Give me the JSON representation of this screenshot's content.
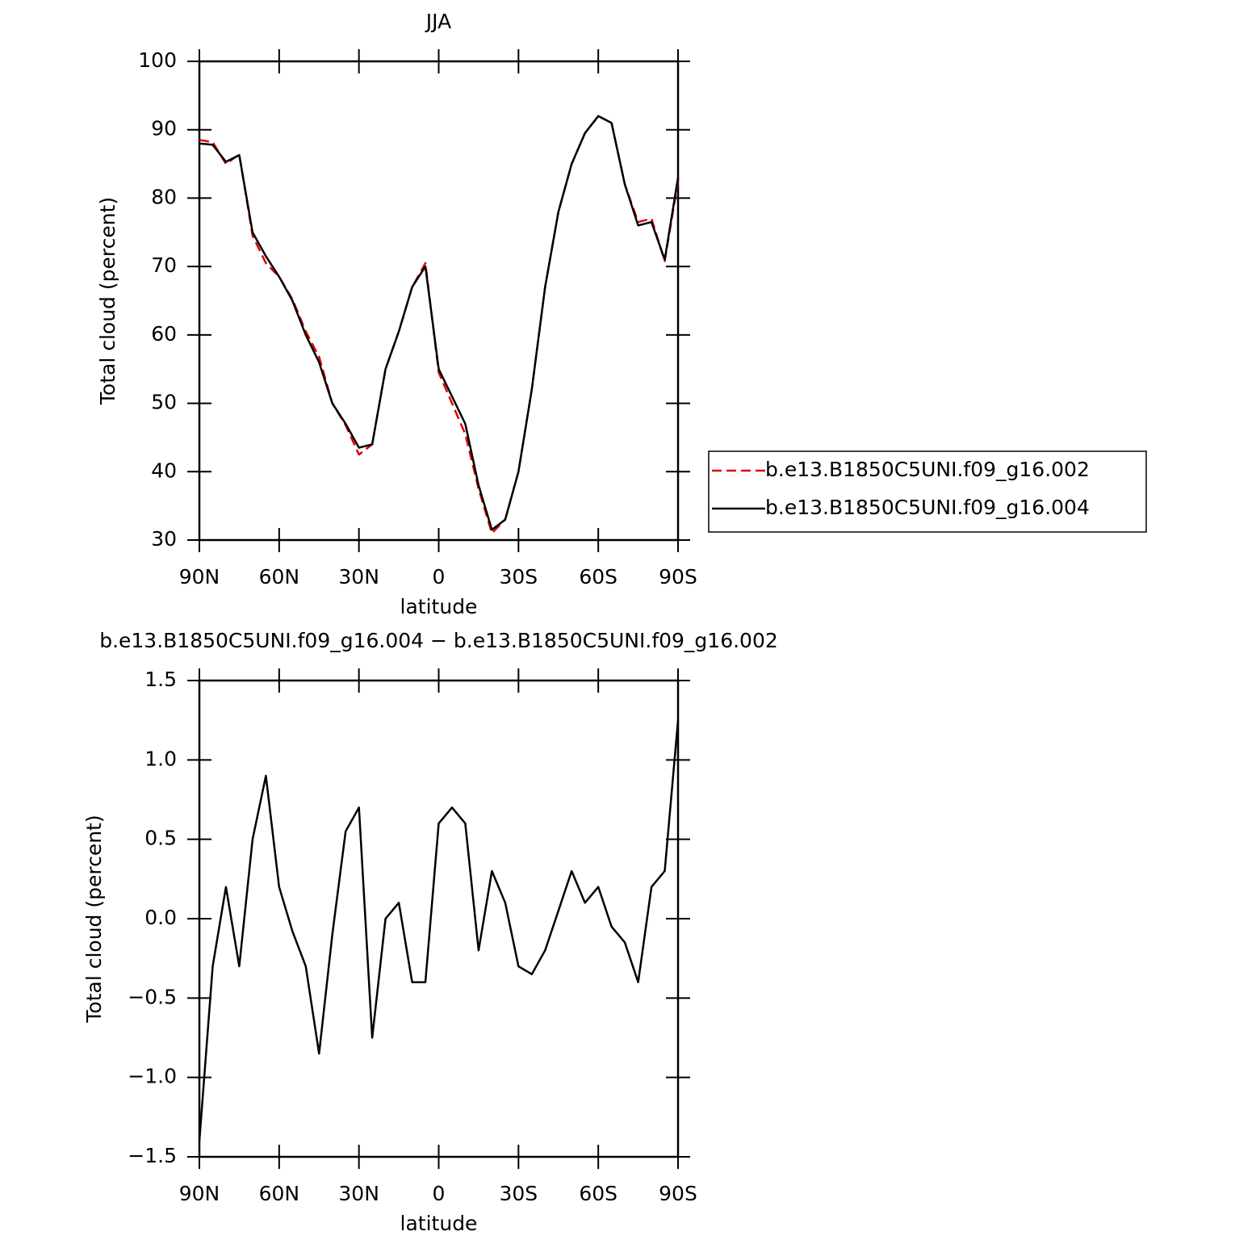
{
  "chart_data": [
    {
      "type": "line",
      "title": "JJA",
      "xlabel": "latitude",
      "ylabel": "Total cloud (percent)",
      "x": [
        90,
        85,
        80,
        75,
        70,
        65,
        60,
        55,
        50,
        45,
        40,
        35,
        30,
        25,
        20,
        15,
        10,
        5,
        0,
        -5,
        -10,
        -15,
        -20,
        -25,
        -30,
        -35,
        -40,
        -45,
        -50,
        -55,
        -60,
        -65,
        -70,
        -75,
        -80,
        -85,
        -90
      ],
      "series": [
        {
          "name": "b.e13.B1850C5UNI.f09_g16.002",
          "color": "#e00000",
          "dash": true,
          "values": [
            88.5,
            88.2,
            85.0,
            86.4,
            74.5,
            70.5,
            68.5,
            65.2,
            60.5,
            56.8,
            50.0,
            46.8,
            42.5,
            44.0,
            55.0,
            60.5,
            67.0,
            70.5,
            54.5,
            50.0,
            45.5,
            37.5,
            31.0,
            33.0,
            40.0,
            52.0,
            67.0,
            78.0,
            85.0,
            89.5,
            92.0,
            91.0,
            82.0,
            76.5,
            77.0,
            70.8,
            82.5
          ]
        },
        {
          "name": "b.e13.B1850C5UNI.f09_g16.004",
          "color": "#000000",
          "dash": false,
          "values": [
            88.0,
            87.8,
            85.3,
            86.3,
            75.0,
            71.5,
            68.5,
            65.0,
            60.0,
            56.0,
            50.0,
            47.0,
            43.5,
            44.0,
            55.0,
            60.5,
            67.0,
            70.0,
            55.0,
            51.0,
            47.0,
            38.0,
            31.5,
            33.0,
            40.0,
            52.0,
            67.0,
            78.0,
            85.0,
            89.5,
            92.0,
            91.0,
            82.0,
            76.0,
            76.5,
            71.0,
            83.0
          ]
        }
      ],
      "xlim": [
        90,
        -90
      ],
      "xticks": [
        {
          "value": 90,
          "label": "90N"
        },
        {
          "value": 60,
          "label": "60N"
        },
        {
          "value": 30,
          "label": "30N"
        },
        0,
        {
          "value": -30,
          "label": "30S"
        },
        {
          "value": -60,
          "label": "60S"
        },
        {
          "value": -90,
          "label": "90S"
        }
      ],
      "ylim": [
        30,
        100
      ],
      "yticks": [
        30,
        40,
        50,
        60,
        70,
        80,
        90,
        100
      ],
      "legend": "outside-right"
    },
    {
      "type": "line",
      "title": "b.e13.B1850C5UNI.f09_g16.004 − b.e13.B1850C5UNI.f09_g16.002",
      "xlabel": "latitude",
      "ylabel": "Total cloud (percent)",
      "x": [
        90,
        85,
        80,
        75,
        70,
        65,
        60,
        55,
        50,
        45,
        40,
        35,
        30,
        25,
        20,
        15,
        10,
        5,
        0,
        -5,
        -10,
        -15,
        -20,
        -25,
        -30,
        -35,
        -40,
        -45,
        -50,
        -55,
        -60,
        -65,
        -70,
        -75,
        -80,
        -85,
        -90
      ],
      "values": [
        -1.4,
        -0.3,
        0.2,
        -0.3,
        0.5,
        0.9,
        0.2,
        -0.08,
        -0.3,
        -0.85,
        -0.1,
        0.55,
        0.7,
        -0.75,
        0.0,
        0.1,
        -0.4,
        -0.4,
        0.6,
        0.7,
        0.6,
        -0.2,
        0.3,
        0.1,
        -0.3,
        -0.35,
        -0.2,
        0.05,
        0.3,
        0.1,
        0.2,
        -0.05,
        -0.15,
        -0.4,
        0.2,
        0.3,
        1.25
      ],
      "color": "#000000",
      "xlim": [
        90,
        -90
      ],
      "xticks": [
        {
          "value": 90,
          "label": "90N"
        },
        {
          "value": 60,
          "label": "60N"
        },
        {
          "value": 30,
          "label": "30N"
        },
        0,
        {
          "value": -30,
          "label": "30S"
        },
        {
          "value": -60,
          "label": "60S"
        },
        {
          "value": -90,
          "label": "90S"
        }
      ],
      "ylim": [
        -1.5,
        1.5
      ],
      "yticks": [
        {
          "value": -1.5,
          "label": "−1.5"
        },
        {
          "value": -1.0,
          "label": "−1.0"
        },
        {
          "value": -0.5,
          "label": "−0.5"
        },
        {
          "value": 0,
          "label": "0.0"
        },
        0.5,
        {
          "value": 1.0,
          "label": "1.0"
        },
        1.5
      ]
    }
  ]
}
